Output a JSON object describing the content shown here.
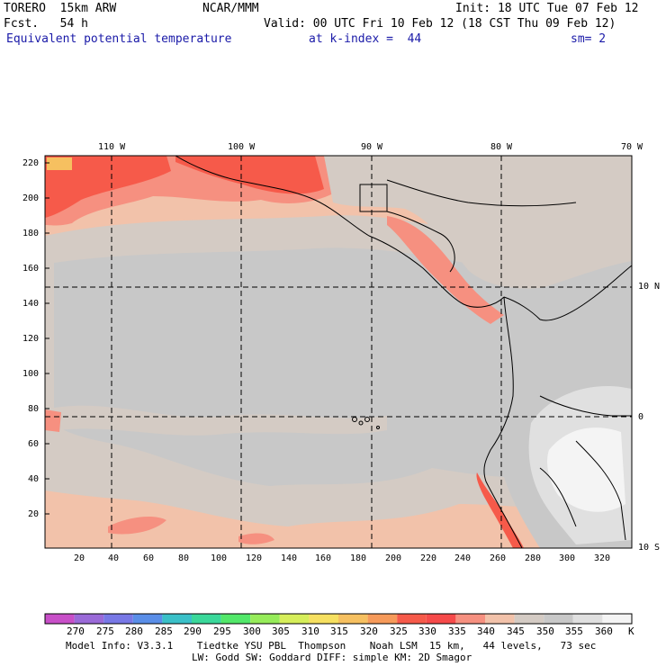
{
  "header": {
    "model": "TORERO  15km ARW",
    "org": "NCAR/MMM",
    "init": "Init: 18 UTC Tue 07 Feb 12",
    "fcst": "Fcst.   54 h",
    "valid": "Valid: 00 UTC Fri 10 Feb 12 (18 CST Thu 09 Feb 12)",
    "field": "Equivalent potential temperature",
    "level": "at k-index =  44",
    "smooth": "sm= 2"
  },
  "map": {
    "lon_labels": [
      "110 W",
      "100 W",
      "90 W",
      "80 W",
      "70 W"
    ],
    "lat_labels": [
      "10 N",
      "0",
      "10 S"
    ],
    "y_ticks": [
      "220",
      "200",
      "180",
      "160",
      "140",
      "120",
      "100",
      "80",
      "60",
      "40",
      "20"
    ],
    "x_ticks": [
      "20",
      "40",
      "60",
      "80",
      "100",
      "120",
      "140",
      "160",
      "180",
      "200",
      "220",
      "240",
      "260",
      "280",
      "300",
      "320"
    ]
  },
  "colorbar": {
    "labels": [
      "270",
      "275",
      "280",
      "285",
      "290",
      "295",
      "300",
      "305",
      "310",
      "315",
      "320",
      "325",
      "330",
      "335",
      "340",
      "345",
      "350",
      "355",
      "360"
    ],
    "unit": "K",
    "colors": [
      "#c84fc8",
      "#9a6ad8",
      "#7878e6",
      "#5a8ee8",
      "#3ac0c8",
      "#3ad89a",
      "#52e86a",
      "#96ec5a",
      "#d6ee5a",
      "#f6e060",
      "#f6c060",
      "#f69a5a",
      "#f65a4a",
      "#f64a4a",
      "#f69080",
      "#f2c2aa",
      "#d4cbc4",
      "#c8c8c8",
      "#e0e0e0",
      "#f4f4f4"
    ]
  },
  "footer": {
    "line1": "Model Info: V3.3.1    Tiedtke YSU PBL  Thompson    Noah LSM  15 km,   44 levels,   73 sec",
    "line2": "LW: Godd SW: Goddard DIFF: simple KM: 2D Smagor"
  },
  "palette": {
    "warm_red": "#f65a4a",
    "salmon": "#f69080",
    "peach": "#f2c2aa",
    "tan_grey": "#d4cbc4",
    "grey": "#c8c8c8",
    "light_grey": "#e0e0e0",
    "white_high": "#f4f4f4"
  }
}
